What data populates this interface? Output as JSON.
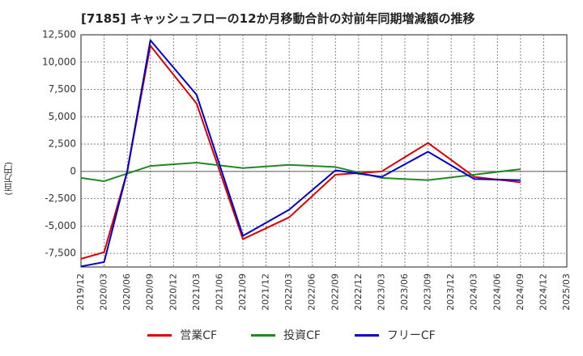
{
  "chart_data": {
    "type": "line",
    "title": "[7185]  キャッシュフローの12か月移動合計の対前年同期増減額の推移",
    "ylabel": "(百万円)",
    "xlabel": "",
    "ylim": [
      -8750,
      12500
    ],
    "yticks": [
      -7500,
      -5000,
      -2500,
      0,
      2500,
      5000,
      7500,
      10000,
      12500
    ],
    "ytick_labels": [
      "-7,500",
      "-5,000",
      "-2,500",
      "0",
      "2,500",
      "5,000",
      "7,500",
      "10,000",
      "12,500"
    ],
    "categories": [
      "2019/12",
      "2020/03",
      "2020/06",
      "2020/09",
      "2020/12",
      "2021/03",
      "2021/06",
      "2021/09",
      "2021/12",
      "2022/03",
      "2022/06",
      "2022/09",
      "2022/12",
      "2023/03",
      "2023/06",
      "2023/09",
      "2023/12",
      "2024/03",
      "2024/06",
      "2024/09",
      "2024/12",
      "2025/03"
    ],
    "grid": true,
    "legend_position": "bottom",
    "series": [
      {
        "name": "営業CF",
        "color": "#dd0000",
        "values": [
          -8000,
          -7400,
          0,
          11500,
          null,
          6200,
          null,
          -6200,
          null,
          -4200,
          null,
          -300,
          null,
          0,
          null,
          2600,
          null,
          -500,
          null,
          -1000,
          null,
          null
        ]
      },
      {
        "name": "投資CF",
        "color": "#228822",
        "values": [
          -600,
          -900,
          null,
          500,
          null,
          800,
          null,
          300,
          null,
          600,
          null,
          400,
          null,
          -600,
          null,
          -800,
          null,
          -300,
          null,
          200,
          null,
          null
        ]
      },
      {
        "name": "フリーCF",
        "color": "#0000cc",
        "values": [
          -8700,
          -8300,
          0,
          12000,
          null,
          7000,
          null,
          -5900,
          null,
          -3500,
          null,
          100,
          null,
          -500,
          null,
          1800,
          null,
          -700,
          null,
          -800,
          null,
          null
        ]
      }
    ]
  }
}
